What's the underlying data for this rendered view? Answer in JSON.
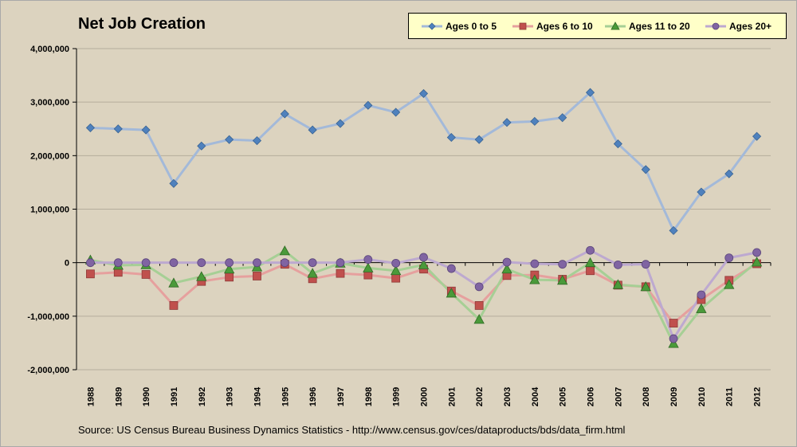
{
  "chart_data": {
    "type": "line",
    "title": "Net Job Creation",
    "x": [
      "1988",
      "1989",
      "1990",
      "1991",
      "1992",
      "1993",
      "1994",
      "1995",
      "1996",
      "1997",
      "1998",
      "1999",
      "2000",
      "2001",
      "2002",
      "2003",
      "2004",
      "2005",
      "2006",
      "2007",
      "2008",
      "2009",
      "2010",
      "2011",
      "2012"
    ],
    "ylim": [
      -2000000,
      4000000
    ],
    "yticks": [
      4000000,
      3000000,
      2000000,
      1000000,
      0,
      -1000000,
      -2000000
    ],
    "ytick_labels": [
      "4,000,000",
      "3,000,000",
      "2,000,000",
      "1,000,000",
      "0",
      "-1,000,000",
      "-2,000,000"
    ],
    "grid": true,
    "legend_position": "top-right",
    "series": [
      {
        "name": "Ages 0 to 5",
        "color": "#4f81bd",
        "line_color": "#a3b9d9",
        "marker": "diamond",
        "values": [
          2520000,
          2500000,
          2480000,
          1480000,
          2180000,
          2300000,
          2280000,
          2780000,
          2480000,
          2600000,
          2940000,
          2810000,
          3160000,
          2340000,
          2300000,
          2620000,
          2640000,
          2710000,
          3180000,
          2220000,
          1740000,
          600000,
          1320000,
          1660000,
          2360000
        ]
      },
      {
        "name": "Ages 6 to 10",
        "color": "#c0504d",
        "line_color": "#e6a09e",
        "marker": "square",
        "values": [
          -210000,
          -180000,
          -220000,
          -800000,
          -350000,
          -270000,
          -250000,
          -30000,
          -300000,
          -200000,
          -230000,
          -290000,
          -120000,
          -530000,
          -800000,
          -240000,
          -230000,
          -310000,
          -150000,
          -420000,
          -450000,
          -1130000,
          -690000,
          -330000,
          -20000
        ]
      },
      {
        "name": "Ages 11 to 20",
        "color": "#4a9a3a",
        "line_color": "#a6cf95",
        "marker": "triangle",
        "values": [
          50000,
          -50000,
          -40000,
          -380000,
          -260000,
          -120000,
          -80000,
          220000,
          -200000,
          -10000,
          -100000,
          -150000,
          -40000,
          -570000,
          -1060000,
          -120000,
          -320000,
          -330000,
          0,
          -410000,
          -450000,
          -1510000,
          -860000,
          -410000,
          10000
        ]
      },
      {
        "name": "Ages 20+",
        "color": "#8064a2",
        "line_color": "#bda9d0",
        "marker": "circle",
        "values": [
          0,
          0,
          0,
          0,
          0,
          0,
          0,
          0,
          0,
          0,
          60000,
          -10000,
          100000,
          -110000,
          -450000,
          10000,
          -20000,
          -30000,
          230000,
          -40000,
          -30000,
          -1420000,
          -600000,
          90000,
          190000
        ]
      }
    ]
  },
  "source": "Source:  US Census Bureau  Business Dynamics Statistics - http://www.census.gov/ces/dataproducts/bds/data_firm.html"
}
